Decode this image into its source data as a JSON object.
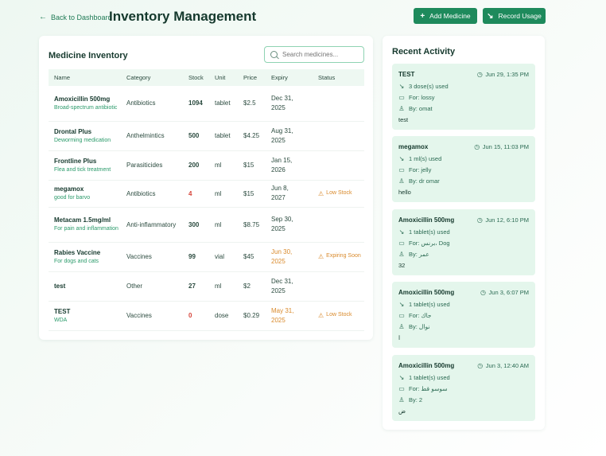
{
  "header": {
    "back_label": "Back to Dashboard",
    "title": "Inventory Management",
    "add_label": "Add Medicine",
    "record_label": "Record Usage"
  },
  "inventory": {
    "title": "Medicine Inventory",
    "search_placeholder": "Search medicines...",
    "columns": [
      "Name",
      "Category",
      "Stock",
      "Unit",
      "Price",
      "Expiry",
      "Status"
    ],
    "rows": [
      {
        "name": "Amoxicillin 500mg",
        "desc": "Broad-spectrum antibiotic",
        "category": "Antibiotics",
        "stock": "1094",
        "unit": "tablet",
        "price": "$2.5",
        "expiry": "Dec 31, 2025",
        "status": ""
      },
      {
        "name": "Drontal Plus",
        "desc": "Deworming medication",
        "category": "Anthelmintics",
        "stock": "500",
        "unit": "tablet",
        "price": "$4.25",
        "expiry": "Aug 31, 2025",
        "status": ""
      },
      {
        "name": "Frontline Plus",
        "desc": "Flea and tick treatment",
        "category": "Parasiticides",
        "stock": "200",
        "unit": "ml",
        "price": "$15",
        "expiry": "Jan 15, 2026",
        "status": ""
      },
      {
        "name": "megamox",
        "desc": "good for barvo",
        "category": "Antibiotics",
        "stock": "4",
        "unit": "ml",
        "price": "$15",
        "expiry": "Jun 8, 2027",
        "status": "Low Stock"
      },
      {
        "name": "Metacam 1.5mg/ml",
        "desc": "For pain and inflammation",
        "category": "Anti-inflammatory",
        "stock": "300",
        "unit": "ml",
        "price": "$8.75",
        "expiry": "Sep 30, 2025",
        "status": ""
      },
      {
        "name": "Rabies Vaccine",
        "desc": "For dogs and cats",
        "category": "Vaccines",
        "stock": "99",
        "unit": "vial",
        "price": "$45",
        "expiry": "Jun 30, 2025",
        "status": "Expiring Soon"
      },
      {
        "name": "test",
        "desc": "",
        "category": "Other",
        "stock": "27",
        "unit": "ml",
        "price": "$2",
        "expiry": "Dec 31, 2025",
        "status": ""
      },
      {
        "name": "TEST",
        "desc": "WDA",
        "category": "Vaccines",
        "stock": "0",
        "unit": "dose",
        "price": "$0.29",
        "expiry": "May 31, 2025",
        "status": "Low Stock"
      }
    ]
  },
  "activity": {
    "title": "Recent Activity",
    "items": [
      {
        "name": "TEST",
        "time": "Jun 29, 1:35 PM",
        "used": "3 dose(s) used",
        "for": "For: lossy",
        "by": "By: omat",
        "note": "test"
      },
      {
        "name": "megamox",
        "time": "Jun 15, 11:03 PM",
        "used": "1 ml(s) used",
        "for": "For: jelly",
        "by": "By: dr omar",
        "note": "hello"
      },
      {
        "name": "Amoxicillin 500mg",
        "time": "Jun 12, 6:10 PM",
        "used": "1 tablet(s) used",
        "for": "For: برنس، Dog",
        "by": "By: عمر",
        "note": "32"
      },
      {
        "name": "Amoxicillin 500mg",
        "time": "Jun 3, 6:07 PM",
        "used": "1 tablet(s) used",
        "for": "For: جاك",
        "by": "By: نوال",
        "note": "ا"
      },
      {
        "name": "Amoxicillin 500mg",
        "time": "Jun 3, 12:40 AM",
        "used": "1 tablet(s) used",
        "for": "For: سوسو قط",
        "by": "By: 2",
        "note": "ض"
      }
    ]
  }
}
